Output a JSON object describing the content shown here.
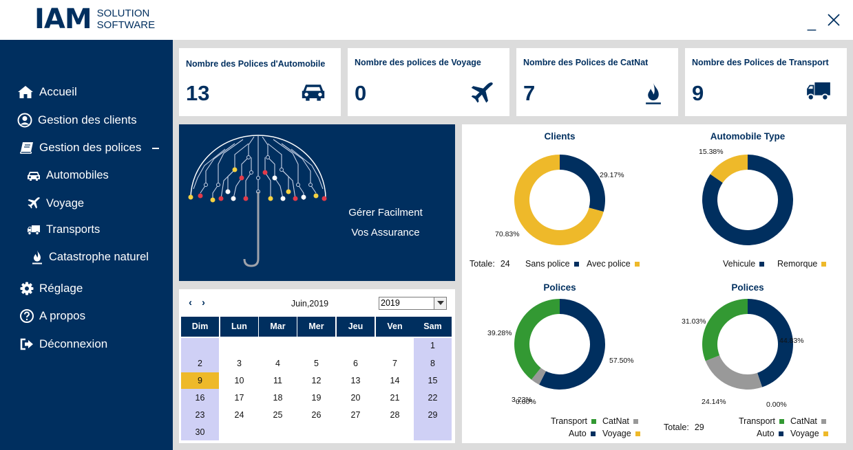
{
  "app": {
    "logo_main": "IAM",
    "logo_sub_line1": "SOLUTION",
    "logo_sub_line2": "SOFTWARE",
    "minimize_glyph": "_"
  },
  "sidebar": {
    "items": [
      {
        "label": "Accueil",
        "icon": "home-icon"
      },
      {
        "label": "Gestion des clients",
        "icon": "user-icon"
      },
      {
        "label": "Gestion des polices",
        "icon": "book-icon"
      },
      {
        "label": "Automobiles",
        "icon": "car-icon"
      },
      {
        "label": "Voyage",
        "icon": "plane-icon"
      },
      {
        "label": "Transports",
        "icon": "truck-icon"
      },
      {
        "label": "Catastrophe naturel",
        "icon": "flame-icon"
      },
      {
        "label": "Réglage",
        "icon": "gear-icon"
      },
      {
        "label": "A propos",
        "icon": "question-icon"
      },
      {
        "label": "Déconnexion",
        "icon": "logout-icon"
      }
    ]
  },
  "kpis": [
    {
      "title": "Nombre des Polices d'Automobile",
      "value": "13",
      "icon": "car-icon"
    },
    {
      "title": "Nombre des polices de Voyage",
      "value": "0",
      "icon": "plane-icon"
    },
    {
      "title": "Nombre des Polices de CatNat",
      "value": "7",
      "icon": "flame-icon"
    },
    {
      "title": "Nombre des Polices de Transport",
      "value": "9",
      "icon": "truck-icon"
    }
  ],
  "banner": {
    "line1": "Gérer Facilment",
    "line2": "Vos Assurance"
  },
  "calendar": {
    "prev": "‹",
    "next": "›",
    "month_label": "Juin,2019",
    "year_value": "2019",
    "weekdays": [
      "Dim",
      "Lun",
      "Mar",
      "Mer",
      "Jeu",
      "Ven",
      "Sam"
    ],
    "weeks": [
      [
        "",
        "",
        "",
        "",
        "",
        "",
        "1"
      ],
      [
        "2",
        "3",
        "4",
        "5",
        "6",
        "7",
        "8"
      ],
      [
        "9",
        "10",
        "11",
        "12",
        "13",
        "14",
        "15"
      ],
      [
        "16",
        "17",
        "18",
        "19",
        "20",
        "21",
        "22"
      ],
      [
        "23",
        "24",
        "25",
        "26",
        "27",
        "28",
        "29"
      ],
      [
        "30",
        "",
        "",
        "",
        "",
        "",
        ""
      ]
    ],
    "today": "9"
  },
  "colors": {
    "navy": "#002f5f",
    "gold": "#eeb92a",
    "green": "#339933",
    "gray": "#999999",
    "weekend": "#cfd0f5"
  },
  "chart_data": [
    {
      "type": "pie",
      "title": "Clients",
      "series": [
        {
          "name": "Sans police",
          "value": 29.17,
          "label": "29.17%",
          "color": "#002f5f"
        },
        {
          "name": "Avec police",
          "value": 70.83,
          "label": "70.83%",
          "color": "#eeb92a"
        }
      ],
      "total_label": "Totale:",
      "total_value": "24",
      "legend": "bottom"
    },
    {
      "type": "pie",
      "title": "Automobile Type",
      "series": [
        {
          "name": "Vehicule",
          "value": 84.62,
          "label": "",
          "color": "#002f5f"
        },
        {
          "name": "Remorque",
          "value": 15.38,
          "label": "15.38%",
          "color": "#eeb92a"
        }
      ],
      "legend": "bottom"
    },
    {
      "type": "pie",
      "title": "Polices",
      "series": [
        {
          "name": "Auto",
          "value": 57.5,
          "label": "57.50%",
          "color": "#002f5f"
        },
        {
          "name": "Voyage",
          "value": 0.0,
          "label": "0.00%",
          "color": "#eeb92a"
        },
        {
          "name": "CatNat",
          "value": 3.23,
          "label": "3.23%",
          "color": "#999999"
        },
        {
          "name": "Transport",
          "value": 39.28,
          "label": "39.28%",
          "color": "#339933"
        }
      ],
      "legend": "bottom-right"
    },
    {
      "type": "pie",
      "title": "Polices",
      "series": [
        {
          "name": "Auto",
          "value": 44.83,
          "label": "44.83%",
          "color": "#002f5f"
        },
        {
          "name": "Voyage",
          "value": 0.0,
          "label": "0.00%",
          "color": "#eeb92a"
        },
        {
          "name": "CatNat",
          "value": 24.14,
          "label": "24.14%",
          "color": "#999999"
        },
        {
          "name": "Transport",
          "value": 31.03,
          "label": "31.03%",
          "color": "#339933"
        }
      ],
      "total_label": "Totale:",
      "total_value": "29",
      "legend": "bottom-right"
    }
  ]
}
